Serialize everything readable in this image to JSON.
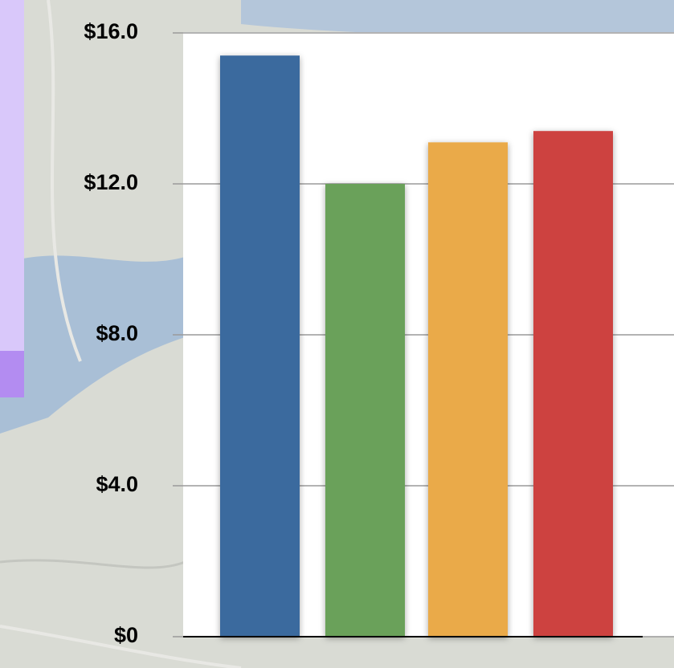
{
  "chart_data": {
    "type": "bar",
    "categories": [
      null,
      null,
      null,
      null
    ],
    "values": [
      15.4,
      12.0,
      13.1,
      13.4
    ],
    "colors": [
      "#3a6a9e",
      "#6aa15a",
      "#eaaa48",
      "#cd433f"
    ],
    "ylim": [
      0,
      16
    ],
    "yticks": [
      {
        "value": 0,
        "label": "$0"
      },
      {
        "value": 4,
        "label": "$4.0"
      },
      {
        "value": 8,
        "label": "$8.0"
      },
      {
        "value": 12,
        "label": "$12.0"
      },
      {
        "value": 16,
        "label": "$16.0"
      }
    ],
    "grid": true
  }
}
